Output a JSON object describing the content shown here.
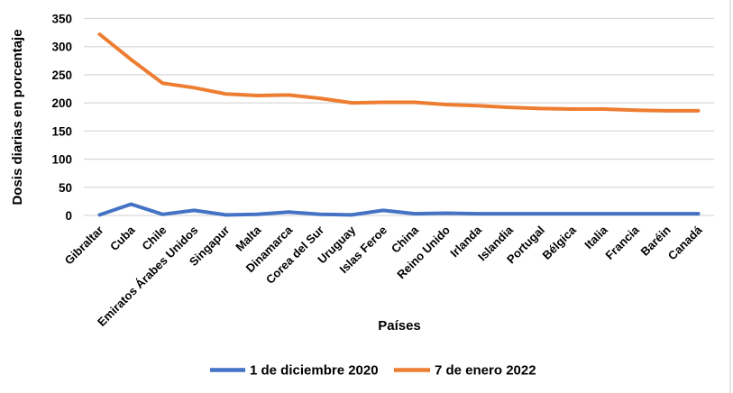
{
  "chart_data": {
    "type": "line",
    "title": "",
    "xlabel": "Países",
    "ylabel": "Dosis diarias en porcentaje",
    "ylim": [
      0,
      350
    ],
    "yticks": [
      350,
      300,
      250,
      200,
      150,
      100,
      50,
      0
    ],
    "grid": "horizontal",
    "legend_position": "bottom",
    "categories": [
      "Gibraltar",
      "Cuba",
      "Chile",
      "Emiratos Árabes Unidos",
      "Singapur",
      "Malta",
      "Dinamarca",
      "Corea del Sur",
      "Uruguay",
      "Islas Feroe",
      "China",
      "Reino Unido",
      "Irlanda",
      "Islandia",
      "Portugal",
      "Bélgica",
      "Italia",
      "Francia",
      "Baréin",
      "Canadá"
    ],
    "series": [
      {
        "name": "1 de diciembre 2020",
        "color": "#4472C4",
        "values": [
          1,
          20,
          2,
          9,
          1,
          2,
          6,
          2,
          1,
          9,
          3,
          4,
          3,
          3,
          3,
          3,
          3,
          3,
          3,
          3
        ]
      },
      {
        "name": "7 de enero 2022",
        "color": "#ED7D31",
        "values": [
          322,
          277,
          235,
          227,
          216,
          213,
          214,
          208,
          200,
          201,
          201,
          197,
          195,
          192,
          190,
          189,
          189,
          187,
          186,
          186
        ]
      }
    ]
  },
  "colors": {
    "gridline": "#D9D9D9",
    "axis_text": "#000000",
    "background": "#FFFFFF",
    "right_border": "#D9D9D9"
  }
}
